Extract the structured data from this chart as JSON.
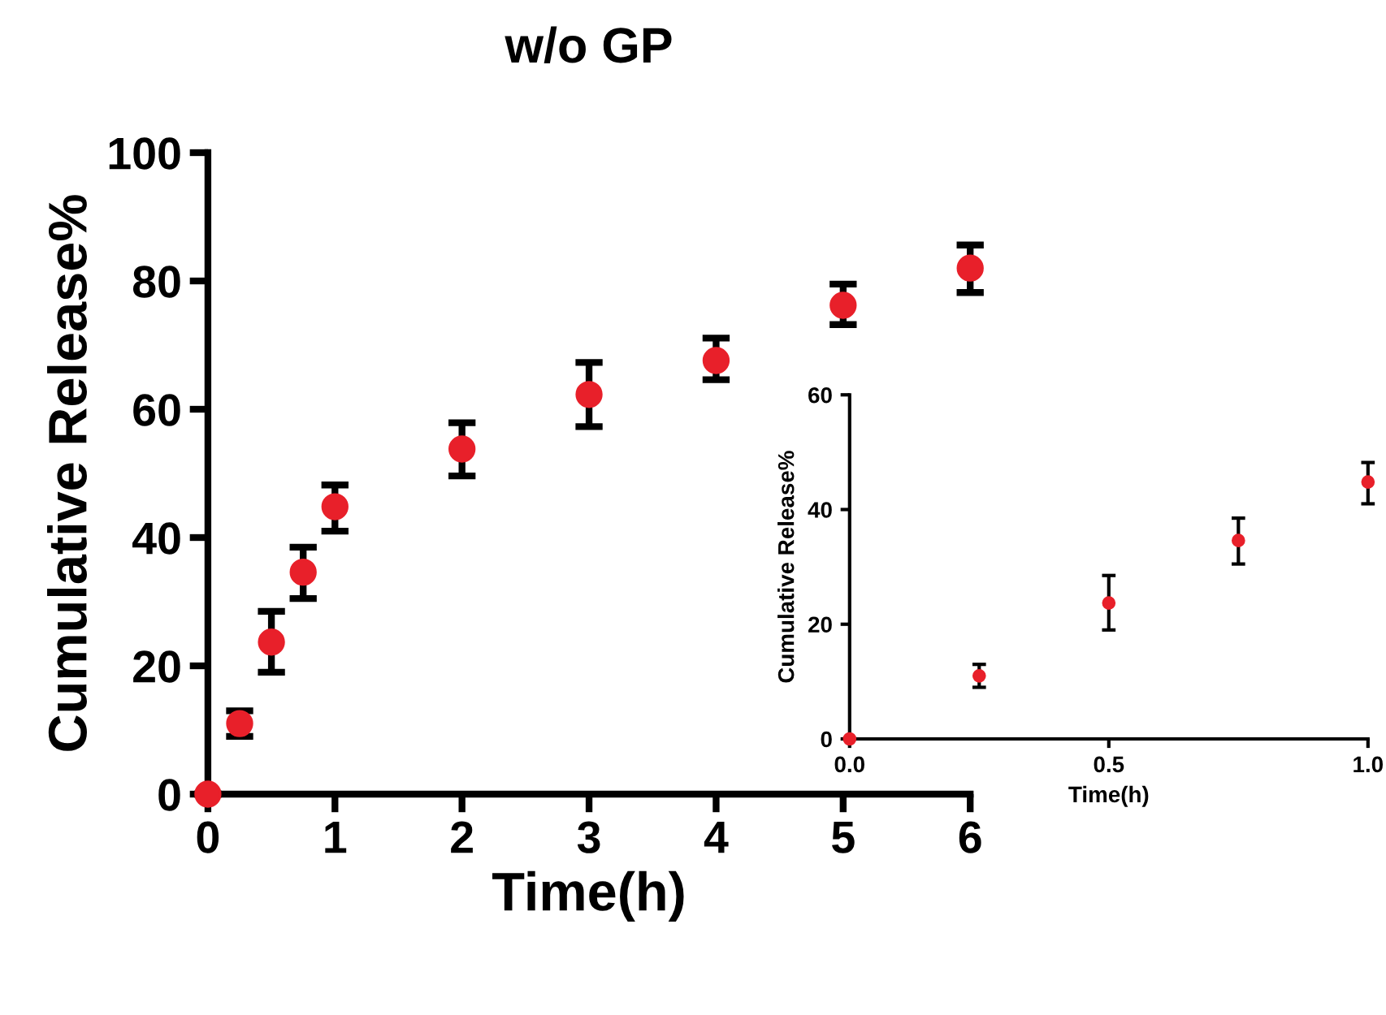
{
  "chart_data": [
    {
      "type": "scatter",
      "title": "w/o GP",
      "xlabel": "Time(h)",
      "ylabel": "Cumulative Release%",
      "x": [
        0,
        0.25,
        0.5,
        0.75,
        1,
        2,
        3,
        4,
        5,
        6
      ],
      "series": [
        {
          "color": "#e8202a",
          "values": [
            0,
            11,
            23.7,
            34.6,
            44.8,
            53.8,
            62.3,
            67.6,
            76.2,
            82.0
          ],
          "errors": [
            null,
            [
              9,
              13
            ],
            [
              19,
              28.5
            ],
            [
              30.5,
              38.5
            ],
            [
              41,
              48.2
            ],
            [
              49.6,
              57.9
            ],
            [
              57.3,
              67.3
            ],
            [
              64.6,
              71.1
            ],
            [
              73.2,
              79.5
            ],
            [
              78.2,
              85.6
            ]
          ]
        }
      ],
      "xlim": [
        0,
        6
      ],
      "xticks": [
        0,
        1,
        2,
        3,
        4,
        5,
        6
      ],
      "ylim": [
        0,
        100
      ],
      "yticks": [
        0,
        20,
        40,
        60,
        80,
        100
      ],
      "marker": "circle",
      "grid": false,
      "legend": false
    },
    {
      "type": "scatter",
      "xlabel": "Time(h)",
      "ylabel": "Cumulative Release%",
      "x": [
        0,
        0.25,
        0.5,
        0.75,
        1
      ],
      "series": [
        {
          "color": "#e8202a",
          "values": [
            0,
            11,
            23.7,
            34.6,
            44.8
          ],
          "errors": [
            null,
            [
              9,
              13
            ],
            [
              19,
              28.5
            ],
            [
              30.5,
              38.5
            ],
            [
              41,
              48.2
            ]
          ]
        }
      ],
      "xlim": [
        0,
        1
      ],
      "xticks": [
        {
          "value": 0,
          "label": "0.0"
        },
        {
          "value": 0.5,
          "label": "0.5"
        },
        {
          "value": 1,
          "label": "1.0"
        }
      ],
      "ylim": [
        0,
        60
      ],
      "yticks": [
        0,
        20,
        40,
        60
      ],
      "marker": "circle",
      "grid": false,
      "legend": false
    }
  ]
}
